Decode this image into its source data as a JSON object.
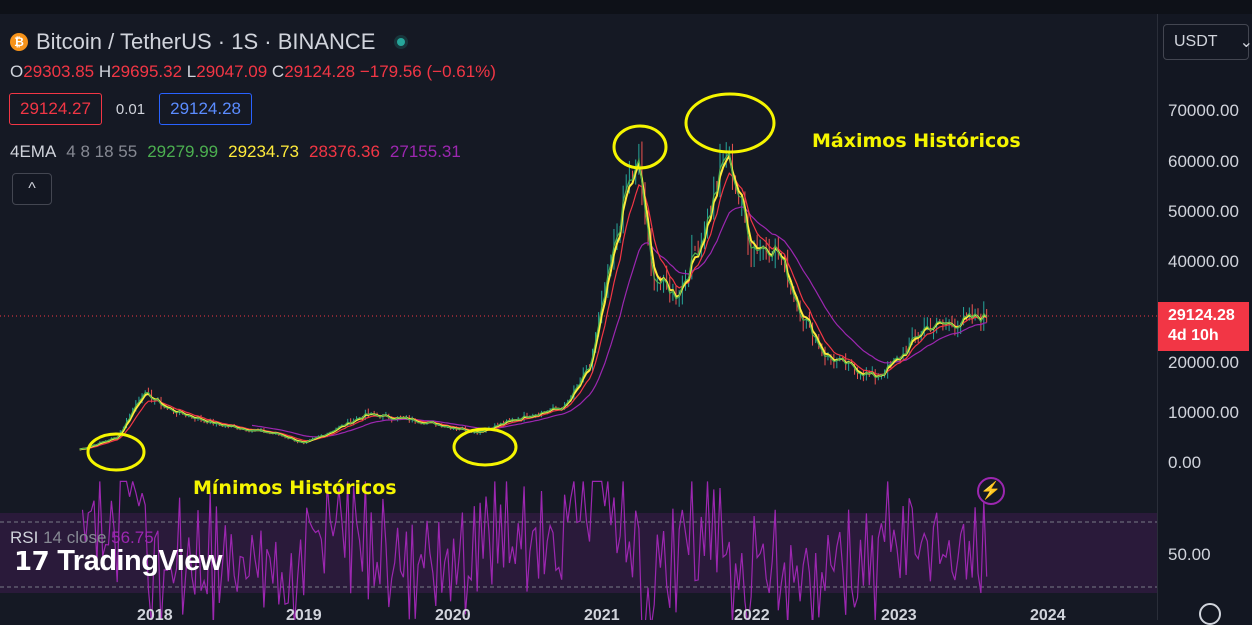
{
  "symbol": {
    "logo_glyph": "₿",
    "title": "Bitcoin / TetherUS · 1S · BINANCE"
  },
  "ohlc": {
    "o_label": "O",
    "o": "29303.85",
    "h_label": "H",
    "h": "29695.32",
    "l_label": "L",
    "l": "29047.09",
    "c_label": "C",
    "c": "29124.28",
    "change": "−179.56 (−0.61%)"
  },
  "trade": {
    "sell": "29124.27",
    "spread": "0.01",
    "buy": "29124.28"
  },
  "ema": {
    "name": "4EMA",
    "params": "4 8 18 55",
    "v1": "29279.99",
    "v2": "29234.73",
    "v3": "28376.36",
    "v4": "27155.31",
    "colors": [
      "#4caf50",
      "#ffeb3b",
      "#f23645",
      "#9c27b0"
    ]
  },
  "collapse_glyph": "^",
  "currency": {
    "value": "USDT",
    "chevron": "⌄"
  },
  "price_axis": {
    "labels": [
      "70000.00",
      "60000.00",
      "50000.00",
      "40000.00",
      "20000.00",
      "10000.00",
      "0.00"
    ],
    "last_price": "29124.28",
    "countdown": "4d 10h",
    "rsi_level": "50.00"
  },
  "time_axis": [
    "2018",
    "2019",
    "2020",
    "2021",
    "2022",
    "2023",
    "2024"
  ],
  "annotations": {
    "highs": "Máximos Históricos",
    "lows": "Mínimos Históricos"
  },
  "rsi": {
    "name": "RSI",
    "params": "14 close",
    "value": "56.75"
  },
  "branding": {
    "mark": "17",
    "name": "TradingView"
  },
  "flash_glyph": "⚡",
  "colors": {
    "ema4": "#4caf50",
    "ema8": "#ffeb3b",
    "ema18": "#f23645",
    "ema55": "#9c27b0",
    "annotation": "#f5f500",
    "rsi": "#9c27b0"
  },
  "chart_data": {
    "type": "line",
    "x": [
      "2017-07",
      "2017-10",
      "2017-12",
      "2018-02",
      "2018-06",
      "2018-11",
      "2019-01",
      "2019-06",
      "2019-10",
      "2020-03",
      "2020-07",
      "2020-10",
      "2020-12",
      "2021-03",
      "2021-04",
      "2021-05",
      "2021-07",
      "2021-09",
      "2021-11",
      "2022-01",
      "2022-03",
      "2022-05",
      "2022-07",
      "2022-11",
      "2023-01",
      "2023-03",
      "2023-05",
      "2023-08"
    ],
    "series": [
      {
        "values": [
          2500,
          5000,
          14000,
          10500,
          7500,
          5500,
          3600,
          9500,
          8300,
          6000,
          9300,
          11000,
          19000,
          55000,
          59000,
          37000,
          33000,
          45000,
          62000,
          43000,
          43000,
          30000,
          21000,
          16800,
          21000,
          27000,
          27500,
          29124
        ]
      }
    ],
    "ylim": [
      0,
      70000
    ]
  }
}
